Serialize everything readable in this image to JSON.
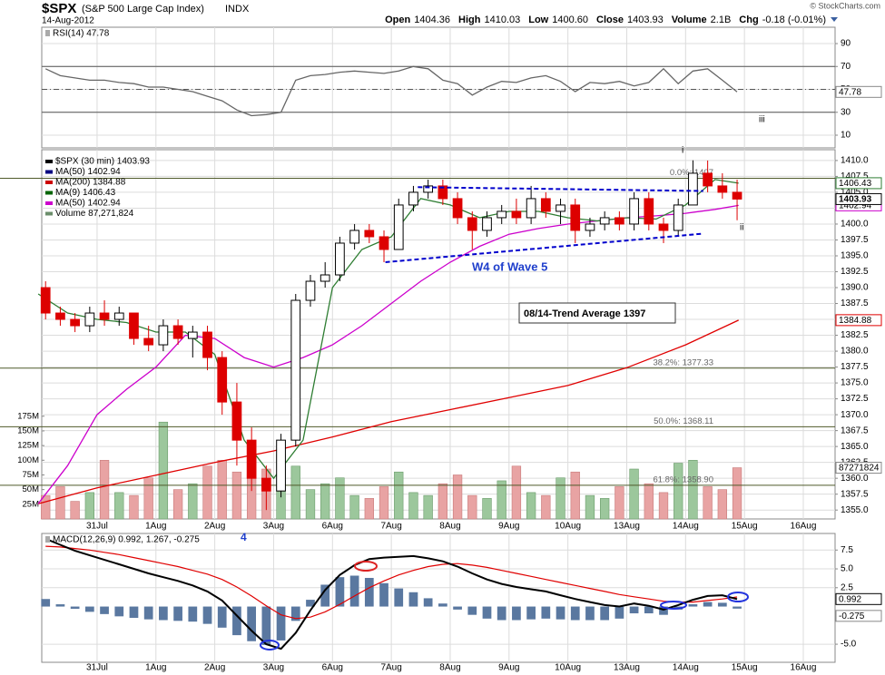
{
  "header": {
    "symbol": "$SPX",
    "name": "(S&P 500 Large Cap Index)",
    "exchange": "INDX",
    "date": "14-Aug-2012",
    "quote": [
      {
        "label": "Open",
        "value": "1404.36"
      },
      {
        "label": "High",
        "value": "1410.03"
      },
      {
        "label": "Low",
        "value": "1400.60"
      },
      {
        "label": "Close",
        "value": "1403.93"
      },
      {
        "label": "Volume",
        "value": "2.1B"
      },
      {
        "label": "Chg",
        "value": "-0.18 (-0.01%)"
      }
    ],
    "credit": "© StockCharts.com"
  },
  "chart_data": [
    {
      "type": "line",
      "title": "RSI(14) 47.78",
      "annotation": "iii",
      "x": [
        0.125,
        0.375,
        0.625,
        0.875,
        1.125,
        1.375,
        1.625,
        1.875,
        2.125,
        2.375,
        2.625,
        2.875,
        3.125,
        3.375,
        3.625,
        3.875,
        4.125,
        4.375,
        4.625,
        4.875,
        5.125,
        5.375,
        5.625,
        5.875,
        6.125,
        6.375,
        6.625,
        6.875,
        7.125,
        7.375,
        7.625,
        7.875,
        8.125,
        8.375,
        8.625,
        8.875,
        9.125,
        9.375,
        9.625,
        9.875,
        10.125,
        10.375,
        10.625,
        10.875,
        11.125,
        11.375,
        11.625,
        11.875
      ],
      "series": [
        {
          "color": "#666666",
          "last_label": "47.78",
          "values": [
            68,
            62,
            60,
            58,
            58,
            56,
            55,
            52,
            52,
            50,
            48,
            44,
            40,
            32,
            27,
            28,
            30,
            58,
            62,
            63,
            65,
            66,
            65,
            64,
            66,
            70,
            68,
            58,
            55,
            45,
            52,
            57,
            56,
            60,
            62,
            57,
            48,
            56,
            55,
            57,
            53,
            56,
            68,
            55,
            66,
            68,
            58,
            47.78
          ]
        }
      ],
      "reference_lines": [
        70,
        50,
        30
      ],
      "xlim": [
        0.06,
        13.54
      ],
      "xticks": [
        1,
        2,
        3,
        4,
        5,
        6,
        7,
        8,
        9,
        10,
        11,
        12,
        13
      ],
      "ylim": [
        -1.1,
        104.3
      ],
      "yticks": [
        10,
        30,
        50,
        70,
        90
      ],
      "grid": true
    },
    {
      "type": "candlestick",
      "legend": [
        {
          "label": "$SPX (30 min) 1403.93",
          "color": "#000000"
        },
        {
          "label": "MA(50) 1402.94",
          "color": "#000080"
        },
        {
          "label": "MA(200) 1384.88",
          "color": "#cc0000"
        },
        {
          "label": "MA(9) 1406.43",
          "color": "#006400"
        },
        {
          "label": "MA(50) 1402.94",
          "color": "#cc00cc"
        },
        {
          "label": "Volume 87,271,824",
          "color": "#6b8e6b"
        }
      ],
      "x": [
        0.125,
        0.375,
        0.625,
        0.875,
        1.125,
        1.375,
        1.625,
        1.875,
        2.125,
        2.375,
        2.625,
        2.875,
        3.125,
        3.375,
        3.625,
        3.875,
        4.125,
        4.375,
        4.625,
        4.875,
        5.125,
        5.375,
        5.625,
        5.875,
        6.125,
        6.375,
        6.625,
        6.875,
        7.125,
        7.375,
        7.625,
        7.875,
        8.125,
        8.375,
        8.625,
        8.875,
        9.125,
        9.375,
        9.625,
        9.875,
        10.125,
        10.375,
        10.625,
        10.875,
        11.125,
        11.375,
        11.625,
        11.875
      ],
      "open": [
        1390,
        1386,
        1385,
        1384,
        1386,
        1385,
        1386,
        1382,
        1381,
        1384,
        1382,
        1383,
        1379,
        1372,
        1366,
        1360,
        1358,
        1366,
        1388,
        1391,
        1392,
        1397,
        1399,
        1398,
        1396,
        1403,
        1405,
        1406,
        1404,
        1401,
        1399,
        1401,
        1402,
        1401,
        1404,
        1402,
        1403,
        1399,
        1400,
        1401,
        1400,
        1404,
        1400,
        1399,
        1403,
        1408,
        1406,
        1405
      ],
      "high": [
        1391,
        1387,
        1386,
        1387,
        1388,
        1387,
        1386,
        1384,
        1385,
        1385,
        1384,
        1384,
        1380,
        1375,
        1368,
        1362,
        1367,
        1389,
        1392,
        1394,
        1398,
        1400,
        1400,
        1399,
        1404,
        1406,
        1407,
        1407,
        1405,
        1402,
        1402,
        1403,
        1404,
        1406,
        1405,
        1404,
        1404,
        1401,
        1402,
        1402,
        1405,
        1405,
        1401,
        1404,
        1410.03,
        1410,
        1408,
        1407
      ],
      "low": [
        1385,
        1384,
        1383,
        1383,
        1384,
        1384,
        1381,
        1380,
        1380,
        1381,
        1379,
        1377,
        1370,
        1362,
        1358,
        1355,
        1357,
        1365,
        1387,
        1390,
        1391,
        1396,
        1397,
        1394,
        1396,
        1402,
        1404,
        1403,
        1400,
        1396,
        1398,
        1400,
        1400,
        1400,
        1401,
        1400,
        1397,
        1398,
        1399,
        1399,
        1399,
        1399,
        1397,
        1398,
        1403,
        1405,
        1404,
        1400.6
      ],
      "close": [
        1386,
        1385,
        1384,
        1386,
        1385,
        1386,
        1382,
        1381,
        1384,
        1382,
        1383,
        1379,
        1372,
        1366,
        1360,
        1358,
        1366,
        1388,
        1391,
        1392,
        1397,
        1399,
        1398,
        1396,
        1403,
        1405,
        1406,
        1404,
        1401,
        1399,
        1401,
        1402,
        1401,
        1404,
        1402,
        1403,
        1399,
        1400,
        1401,
        1400,
        1404,
        1400,
        1399,
        1403,
        1408,
        1406,
        1405,
        1403.93
      ],
      "last_label": "1403.93",
      "up_color": "#000000",
      "down_color": "#dd0000",
      "lines": [
        {
          "color": "#e00000",
          "last_label": "1384.88",
          "x": [
            0,
            1,
            2,
            3,
            4,
            5,
            6,
            7,
            8,
            9,
            10,
            11,
            11.9
          ],
          "values": [
            1356,
            1358.5,
            1360.5,
            1362.5,
            1364.3,
            1366.5,
            1368.9,
            1370.8,
            1372.7,
            1374.6,
            1377.4,
            1381,
            1384.88
          ]
        },
        {
          "color": "#cc00cc",
          "last_label": "1402.94",
          "x": [
            0,
            0.5,
            1,
            1.5,
            2,
            2.5,
            3,
            3.5,
            4,
            4.5,
            5,
            5.5,
            6,
            6.5,
            7,
            7.5,
            8,
            8.5,
            9,
            9.5,
            10,
            10.5,
            11,
            11.5,
            11.9
          ],
          "values": [
            1356,
            1362,
            1370,
            1374,
            1377.5,
            1382.5,
            1382,
            1379,
            1377.5,
            1379,
            1381,
            1384,
            1387.5,
            1391,
            1394,
            1396.5,
            1398.4,
            1399.3,
            1400,
            1400.5,
            1401,
            1401.3,
            1401.7,
            1402.3,
            1402.94
          ]
        },
        {
          "color": "#2e7d32",
          "last_label": "1406.43",
          "x": [
            0,
            0.5,
            1,
            1.5,
            2,
            2.5,
            3,
            3.5,
            4,
            4.5,
            5,
            5.5,
            6,
            6.5,
            7,
            7.5,
            8,
            8.5,
            9,
            9.5,
            10,
            10.5,
            11,
            11.5,
            11.9
          ],
          "values": [
            1389,
            1386,
            1385,
            1384.5,
            1383,
            1383,
            1379.5,
            1366,
            1360,
            1366,
            1390,
            1396,
            1398,
            1404,
            1403,
            1401,
            1402,
            1402,
            1401,
            1400.5,
            1401,
            1400.8,
            1403,
            1407,
            1406.43
          ]
        }
      ],
      "volume": {
        "values": [
          40000000,
          55000000,
          30000000,
          45000000,
          100000000,
          45000000,
          40000000,
          70000000,
          165000000,
          50000000,
          60000000,
          90000000,
          100000000,
          80000000,
          75000000,
          85000000,
          110000000,
          90000000,
          50000000,
          60000000,
          70000000,
          40000000,
          35000000,
          55000000,
          80000000,
          45000000,
          40000000,
          60000000,
          75000000,
          40000000,
          35000000,
          65000000,
          90000000,
          45000000,
          40000000,
          70000000,
          80000000,
          40000000,
          35000000,
          55000000,
          85000000,
          60000000,
          45000000,
          95000000,
          100000000,
          55000000,
          50000000,
          87271824
        ],
        "up_color": "#9cc79c",
        "down_color": "#e8a3a3",
        "last_label": "87271824",
        "ylim": [
          0,
          629000000
        ],
        "yticks": [
          {
            "value": 25000000,
            "label": "25M"
          },
          {
            "value": 50000000,
            "label": "50M"
          },
          {
            "value": 75000000,
            "label": "75M"
          },
          {
            "value": 100000000,
            "label": "100M"
          },
          {
            "value": 125000000,
            "label": "125M"
          },
          {
            "value": 150000000,
            "label": "150M"
          },
          {
            "value": 175000000,
            "label": "175M"
          }
        ]
      },
      "fib": [
        {
          "label": "0.0%: 1407",
          "value": 1407.2
        },
        {
          "label": "38.2%: 1377.33",
          "value": 1377.33
        },
        {
          "label": "50.0%: 1368.11",
          "value": 1368.11
        },
        {
          "label": "61.8%: 1358.90",
          "value": 1358.9
        }
      ],
      "trendlines": [
        {
          "color": "#0000cc",
          "x": [
            6.45,
            11.3
          ],
          "values": [
            1405.8,
            1405.2
          ]
        },
        {
          "color": "#0000cc",
          "x": [
            5.9,
            11.3
          ],
          "values": [
            1394,
            1398.5
          ]
        }
      ],
      "annotations": [
        "W4 of Wave 5",
        "08/14-Trend Average 1397",
        "i",
        "ii"
      ],
      "xlim": [
        0.06,
        13.54
      ],
      "xticks": [
        {
          "value": 1,
          "label": "31Jul"
        },
        {
          "value": 2,
          "label": "1Aug"
        },
        {
          "value": 3,
          "label": "2Aug"
        },
        {
          "value": 4,
          "label": "3Aug"
        },
        {
          "value": 5,
          "label": "6Aug"
        },
        {
          "value": 6,
          "label": "7Aug"
        },
        {
          "value": 7,
          "label": "8Aug"
        },
        {
          "value": 8,
          "label": "9Aug"
        },
        {
          "value": 9,
          "label": "10Aug"
        },
        {
          "value": 10,
          "label": "13Aug"
        },
        {
          "value": 11,
          "label": "14Aug"
        },
        {
          "value": 12,
          "label": "15Aug"
        },
        {
          "value": 13,
          "label": "16Aug"
        }
      ],
      "ylim": [
        1353.6,
        1411.7
      ],
      "yticks": [
        {
          "value": 1410,
          "label": "1410.0"
        },
        1407.5,
        {
          "value": 1405,
          "label": "1405.0"
        },
        1402.5,
        {
          "value": 1400,
          "label": "1400.0"
        },
        1397.5,
        {
          "value": 1395,
          "label": "1395.0"
        },
        1392.5,
        {
          "value": 1390,
          "label": "1390.0"
        },
        1387.5,
        {
          "value": 1385,
          "label": "1385.0"
        },
        1382.5,
        {
          "value": 1380,
          "label": "1380.0"
        },
        1377.5,
        {
          "value": 1375,
          "label": "1375.0"
        },
        1372.5,
        {
          "value": 1370,
          "label": "1370.0"
        },
        1367.5,
        {
          "value": 1365,
          "label": "1365.0"
        },
        1362.5,
        {
          "value": 1360,
          "label": "1360.0"
        },
        1357.5,
        {
          "value": 1355,
          "label": "1355.0"
        }
      ],
      "grid": true
    },
    {
      "type": "macd",
      "title": "MACD(12,26,9) 0.992, 1.267, -0.275",
      "title_mark": "4",
      "x": [
        0.125,
        0.375,
        0.625,
        0.875,
        1.125,
        1.375,
        1.625,
        1.875,
        2.125,
        2.375,
        2.625,
        2.875,
        3.125,
        3.375,
        3.625,
        3.875,
        4.125,
        4.375,
        4.625,
        4.875,
        5.125,
        5.375,
        5.625,
        5.875,
        6.125,
        6.375,
        6.625,
        6.875,
        7.125,
        7.375,
        7.625,
        7.875,
        8.125,
        8.375,
        8.625,
        8.875,
        9.125,
        9.375,
        9.625,
        9.875,
        10.125,
        10.375,
        10.625,
        10.875,
        11.125,
        11.375,
        11.625,
        11.875
      ],
      "series": [
        {
          "color": "#000000",
          "last_label": "0.992",
          "values": [
            9.0,
            8.2,
            7.4,
            6.8,
            6.2,
            5.6,
            5.0,
            4.4,
            3.9,
            3.4,
            2.8,
            2.0,
            0.8,
            -1.2,
            -3.2,
            -5.0,
            -5.6,
            -3.5,
            -0.5,
            2.2,
            4.2,
            5.5,
            6.3,
            6.5,
            6.6,
            6.7,
            6.4,
            6.0,
            5.3,
            4.4,
            3.6,
            3.0,
            2.6,
            2.3,
            2.0,
            1.5,
            1.0,
            0.6,
            0.2,
            0.0,
            0.4,
            0.1,
            -0.4,
            0.2,
            0.9,
            1.4,
            1.5,
            0.992
          ]
        },
        {
          "color": "#e00000",
          "values": [
            8.0,
            7.9,
            7.7,
            7.5,
            7.2,
            6.9,
            6.5,
            6.1,
            5.7,
            5.3,
            4.8,
            4.3,
            3.6,
            2.6,
            1.4,
            0.1,
            -1.1,
            -1.6,
            -1.4,
            -0.7,
            0.3,
            1.4,
            2.5,
            3.4,
            4.2,
            4.8,
            5.3,
            5.6,
            5.7,
            5.5,
            5.2,
            4.8,
            4.4,
            4.0,
            3.6,
            3.2,
            2.8,
            2.4,
            2.0,
            1.6,
            1.3,
            1.0,
            0.7,
            0.6,
            0.6,
            0.8,
            1.0,
            1.267
          ]
        },
        {
          "color": "#5a78a0",
          "last_label": "-0.275",
          "values": [
            1.0,
            0.3,
            -0.3,
            -0.7,
            -1.0,
            -1.3,
            -1.5,
            -1.7,
            -1.8,
            -1.9,
            -2.0,
            -2.3,
            -2.8,
            -3.8,
            -4.6,
            -5.1,
            -4.5,
            -1.9,
            0.9,
            2.9,
            3.9,
            4.1,
            3.8,
            3.1,
            2.4,
            1.9,
            1.1,
            0.4,
            -0.4,
            -1.1,
            -1.6,
            -1.8,
            -1.8,
            -1.7,
            -1.6,
            -1.7,
            -1.8,
            -1.8,
            -1.8,
            -1.6,
            -0.9,
            -0.9,
            -1.1,
            -0.4,
            0.3,
            0.6,
            0.5,
            -0.275
          ]
        }
      ],
      "xlim": [
        0.06,
        13.54
      ],
      "xticks": [
        {
          "value": 1,
          "label": "31Jul"
        },
        {
          "value": 2,
          "label": "1Aug"
        },
        {
          "value": 3,
          "label": "2Aug"
        },
        {
          "value": 4,
          "label": "3Aug"
        },
        {
          "value": 5,
          "label": "6Aug"
        },
        {
          "value": 6,
          "label": "7Aug"
        },
        {
          "value": 7,
          "label": "8Aug"
        },
        {
          "value": 8,
          "label": "9Aug"
        },
        {
          "value": 9,
          "label": "10Aug"
        },
        {
          "value": 10,
          "label": "13Aug"
        },
        {
          "value": 11,
          "label": "14Aug"
        },
        {
          "value": 12,
          "label": "15Aug"
        },
        {
          "value": 13,
          "label": "16Aug"
        }
      ],
      "ylim": [
        -7.4,
        9.7
      ],
      "yticks": [
        7.5,
        {
          "value": 5,
          "label": "5.0"
        },
        2.5,
        {
          "value": -5,
          "label": "-5.0"
        }
      ],
      "grid": true
    }
  ]
}
